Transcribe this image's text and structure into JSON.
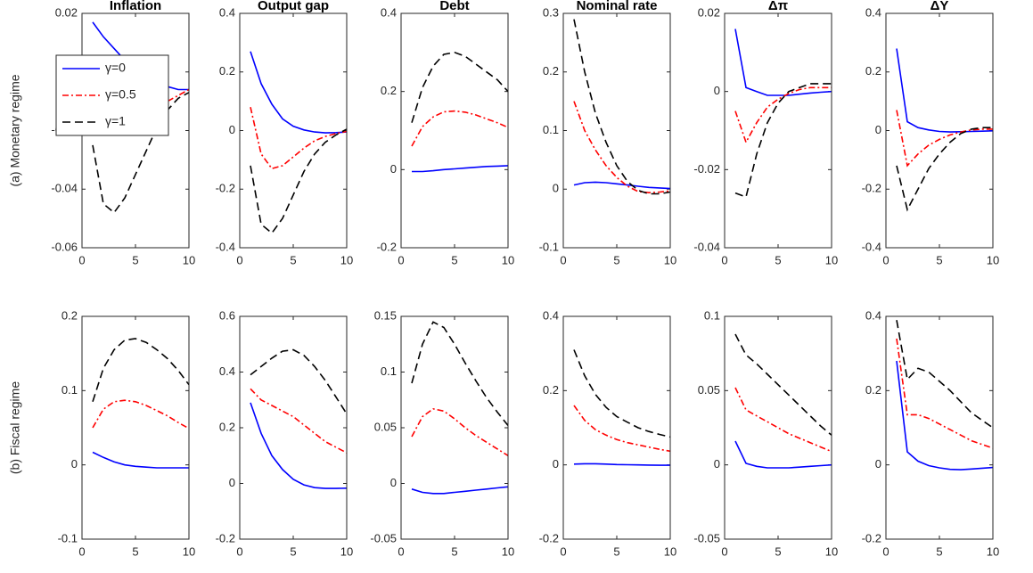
{
  "chart_data": [
    {
      "type": "line",
      "title": "Inflation",
      "ylabel": "(a) Monetary regime",
      "legend": "upper left",
      "x": [
        1,
        2,
        3,
        4,
        5,
        6,
        7,
        8,
        9,
        10
      ],
      "xlim": [
        0,
        10
      ],
      "xticks": [
        0,
        5,
        10
      ],
      "ylim": [
        -0.06,
        0.02
      ],
      "yticks": [
        -0.06,
        -0.04,
        -0.02,
        0,
        0.02
      ],
      "series": [
        {
          "name": "γ=0",
          "color": "#0000ff",
          "linestyle": "solid",
          "values": [
            0.017,
            0.012,
            0.008,
            0.004,
            0.001,
            -0.002,
            -0.004,
            -0.005,
            -0.006,
            -0.006
          ]
        },
        {
          "name": "γ=0.5",
          "color": "#ff0000",
          "linestyle": "dashdot",
          "values": [
            -0.003,
            -0.019,
            -0.02,
            -0.018,
            -0.016,
            -0.014,
            -0.012,
            -0.01,
            -0.008,
            -0.006
          ]
        },
        {
          "name": "γ=1",
          "color": "#000000",
          "linestyle": "dashed",
          "values": [
            -0.025,
            -0.045,
            -0.048,
            -0.043,
            -0.035,
            -0.027,
            -0.019,
            -0.013,
            -0.009,
            -0.007
          ]
        }
      ]
    },
    {
      "type": "line",
      "title": "Output gap",
      "x": [
        1,
        2,
        3,
        4,
        5,
        6,
        7,
        8,
        9,
        10
      ],
      "xlim": [
        0,
        10
      ],
      "xticks": [
        0,
        5,
        10
      ],
      "ylim": [
        -0.4,
        0.4
      ],
      "yticks": [
        -0.4,
        -0.2,
        0,
        0.2,
        0.4
      ],
      "series": [
        {
          "color": "#0000ff",
          "linestyle": "solid",
          "values": [
            0.27,
            0.16,
            0.09,
            0.04,
            0.015,
            0.002,
            -0.005,
            -0.008,
            -0.007,
            -0.005
          ]
        },
        {
          "color": "#ff0000",
          "linestyle": "dashdot",
          "values": [
            0.08,
            -0.08,
            -0.13,
            -0.12,
            -0.09,
            -0.06,
            -0.035,
            -0.02,
            -0.01,
            -0.003
          ]
        },
        {
          "color": "#000000",
          "linestyle": "dashed",
          "values": [
            -0.12,
            -0.32,
            -0.35,
            -0.3,
            -0.22,
            -0.14,
            -0.08,
            -0.04,
            -0.015,
            0.005
          ]
        }
      ]
    },
    {
      "type": "line",
      "title": "Debt",
      "x": [
        1,
        2,
        3,
        4,
        5,
        6,
        7,
        8,
        9,
        10
      ],
      "xlim": [
        0,
        10
      ],
      "xticks": [
        0,
        5,
        10
      ],
      "ylim": [
        -0.2,
        0.4
      ],
      "yticks": [
        -0.2,
        0,
        0.2,
        0.4
      ],
      "series": [
        {
          "color": "#0000ff",
          "linestyle": "solid",
          "values": [
            -0.005,
            -0.005,
            -0.003,
            0,
            0.002,
            0.004,
            0.006,
            0.008,
            0.009,
            0.01
          ]
        },
        {
          "color": "#ff0000",
          "linestyle": "dashdot",
          "values": [
            0.06,
            0.11,
            0.135,
            0.148,
            0.15,
            0.147,
            0.14,
            0.13,
            0.12,
            0.108
          ]
        },
        {
          "color": "#000000",
          "linestyle": "dashed",
          "values": [
            0.12,
            0.21,
            0.265,
            0.295,
            0.3,
            0.29,
            0.27,
            0.25,
            0.23,
            0.2
          ]
        }
      ]
    },
    {
      "type": "line",
      "title": "Nominal rate",
      "x": [
        1,
        2,
        3,
        4,
        5,
        6,
        7,
        8,
        9,
        10
      ],
      "xlim": [
        0,
        10
      ],
      "xticks": [
        0,
        5,
        10
      ],
      "ylim": [
        -0.1,
        0.3
      ],
      "yticks": [
        -0.1,
        0,
        0.1,
        0.2,
        0.3
      ],
      "series": [
        {
          "color": "#0000ff",
          "linestyle": "solid",
          "values": [
            0.007,
            0.011,
            0.012,
            0.011,
            0.009,
            0.007,
            0.005,
            0.003,
            0.002,
            0.001
          ]
        },
        {
          "color": "#ff0000",
          "linestyle": "dashdot",
          "values": [
            0.15,
            0.1,
            0.067,
            0.04,
            0.02,
            0.005,
            -0.004,
            -0.006,
            -0.005,
            -0.003
          ]
        },
        {
          "color": "#000000",
          "linestyle": "dashed",
          "values": [
            0.29,
            0.2,
            0.13,
            0.08,
            0.04,
            0.013,
            -0.002,
            -0.008,
            -0.008,
            -0.005
          ]
        }
      ]
    },
    {
      "type": "line",
      "title": "Δπ",
      "x": [
        1,
        2,
        3,
        4,
        5,
        6,
        7,
        8,
        9,
        10
      ],
      "xlim": [
        0,
        10
      ],
      "xticks": [
        0,
        5,
        10
      ],
      "ylim": [
        -0.04,
        0.02
      ],
      "yticks": [
        -0.04,
        -0.02,
        0,
        0.02
      ],
      "series": [
        {
          "color": "#0000ff",
          "linestyle": "solid",
          "values": [
            0.016,
            0.001,
            0,
            -0.001,
            -0.001,
            -0.001,
            -0.0007,
            -0.0004,
            -0.0002,
            0
          ]
        },
        {
          "color": "#ff0000",
          "linestyle": "dashdot",
          "values": [
            -0.005,
            -0.013,
            -0.008,
            -0.004,
            -0.002,
            -0.0005,
            0.0005,
            0.001,
            0.001,
            0.001
          ]
        },
        {
          "color": "#000000",
          "linestyle": "dashed",
          "values": [
            -0.026,
            -0.027,
            -0.016,
            -0.008,
            -0.003,
            0,
            0.001,
            0.002,
            0.002,
            0.002
          ]
        }
      ]
    },
    {
      "type": "line",
      "title": "ΔY",
      "x": [
        1,
        2,
        3,
        4,
        5,
        6,
        7,
        8,
        9,
        10
      ],
      "xlim": [
        0,
        10
      ],
      "xticks": [
        0,
        5,
        10
      ],
      "ylim": [
        -0.4,
        0.4
      ],
      "yticks": [
        -0.4,
        -0.2,
        0,
        0.2,
        0.4
      ],
      "series": [
        {
          "color": "#0000ff",
          "linestyle": "solid",
          "values": [
            0.28,
            0.03,
            0.01,
            0.002,
            -0.003,
            -0.005,
            -0.004,
            -0.003,
            -0.002,
            -0.001
          ]
        },
        {
          "color": "#ff0000",
          "linestyle": "dashdot",
          "values": [
            0.07,
            -0.12,
            -0.08,
            -0.05,
            -0.03,
            -0.015,
            -0.005,
            0.002,
            0.005,
            0.005
          ]
        },
        {
          "color": "#000000",
          "linestyle": "dashed",
          "values": [
            -0.12,
            -0.27,
            -0.2,
            -0.13,
            -0.08,
            -0.04,
            -0.01,
            0.005,
            0.01,
            0.01
          ]
        }
      ]
    },
    {
      "type": "line",
      "ylabel": "(b) Fiscal regime",
      "x": [
        1,
        2,
        3,
        4,
        5,
        6,
        7,
        8,
        9,
        10
      ],
      "xlim": [
        0,
        10
      ],
      "xticks": [
        0,
        5,
        10
      ],
      "ylim": [
        -0.1,
        0.2
      ],
      "yticks": [
        -0.1,
        0,
        0.1,
        0.2
      ],
      "series": [
        {
          "color": "#0000ff",
          "linestyle": "solid",
          "values": [
            0.017,
            0.01,
            0.004,
            0,
            -0.002,
            -0.003,
            -0.004,
            -0.004,
            -0.004,
            -0.004
          ]
        },
        {
          "color": "#ff0000",
          "linestyle": "dashdot",
          "values": [
            0.05,
            0.075,
            0.085,
            0.087,
            0.085,
            0.08,
            0.073,
            0.066,
            0.057,
            0.049
          ]
        },
        {
          "color": "#000000",
          "linestyle": "dashed",
          "values": [
            0.085,
            0.13,
            0.155,
            0.168,
            0.17,
            0.165,
            0.155,
            0.143,
            0.127,
            0.108
          ]
        }
      ]
    },
    {
      "type": "line",
      "x": [
        1,
        2,
        3,
        4,
        5,
        6,
        7,
        8,
        9,
        10
      ],
      "xlim": [
        0,
        10
      ],
      "xticks": [
        0,
        5,
        10
      ],
      "ylim": [
        -0.2,
        0.6
      ],
      "yticks": [
        -0.2,
        0,
        0.2,
        0.4,
        0.6
      ],
      "series": [
        {
          "color": "#0000ff",
          "linestyle": "solid",
          "values": [
            0.29,
            0.18,
            0.1,
            0.05,
            0.015,
            -0.005,
            -0.015,
            -0.018,
            -0.018,
            -0.017
          ]
        },
        {
          "color": "#ff0000",
          "linestyle": "dashdot",
          "values": [
            0.34,
            0.3,
            0.28,
            0.26,
            0.24,
            0.21,
            0.18,
            0.15,
            0.13,
            0.11
          ]
        },
        {
          "color": "#000000",
          "linestyle": "dashed",
          "values": [
            0.39,
            0.42,
            0.45,
            0.475,
            0.48,
            0.46,
            0.42,
            0.37,
            0.31,
            0.25
          ]
        }
      ]
    },
    {
      "type": "line",
      "x": [
        1,
        2,
        3,
        4,
        5,
        6,
        7,
        8,
        9,
        10
      ],
      "xlim": [
        0,
        10
      ],
      "xticks": [
        0,
        5,
        10
      ],
      "ylim": [
        -0.05,
        0.15
      ],
      "yticks": [
        -0.05,
        0,
        0.05,
        0.1,
        0.15
      ],
      "series": [
        {
          "color": "#0000ff",
          "linestyle": "solid",
          "values": [
            -0.005,
            -0.008,
            -0.009,
            -0.009,
            -0.008,
            -0.007,
            -0.006,
            -0.005,
            -0.004,
            -0.003
          ]
        },
        {
          "color": "#ff0000",
          "linestyle": "dashdot",
          "values": [
            0.042,
            0.06,
            0.067,
            0.065,
            0.058,
            0.05,
            0.043,
            0.037,
            0.031,
            0.025
          ]
        },
        {
          "color": "#000000",
          "linestyle": "dashed",
          "values": [
            0.09,
            0.125,
            0.145,
            0.14,
            0.125,
            0.108,
            0.092,
            0.077,
            0.064,
            0.052
          ]
        }
      ]
    },
    {
      "type": "line",
      "x": [
        1,
        2,
        3,
        4,
        5,
        6,
        7,
        8,
        9,
        10
      ],
      "xlim": [
        0,
        10
      ],
      "xticks": [
        0,
        5,
        10
      ],
      "ylim": [
        -0.2,
        0.4
      ],
      "yticks": [
        -0.2,
        0,
        0.2,
        0.4
      ],
      "series": [
        {
          "color": "#0000ff",
          "linestyle": "solid",
          "values": [
            0.002,
            0.003,
            0.003,
            0.002,
            0.001,
            0.0005,
            0,
            -0.0005,
            -0.001,
            -0.001
          ]
        },
        {
          "color": "#ff0000",
          "linestyle": "dashdot",
          "values": [
            0.16,
            0.12,
            0.095,
            0.08,
            0.068,
            0.06,
            0.054,
            0.048,
            0.042,
            0.037
          ]
        },
        {
          "color": "#000000",
          "linestyle": "dashed",
          "values": [
            0.31,
            0.24,
            0.19,
            0.155,
            0.13,
            0.115,
            0.1,
            0.09,
            0.082,
            0.075
          ]
        }
      ]
    },
    {
      "type": "line",
      "x": [
        1,
        2,
        3,
        4,
        5,
        6,
        7,
        8,
        9,
        10
      ],
      "xlim": [
        0,
        10
      ],
      "xticks": [
        0,
        5,
        10
      ],
      "ylim": [
        -0.05,
        0.1
      ],
      "yticks": [
        -0.05,
        0,
        0.05,
        0.1
      ],
      "series": [
        {
          "color": "#0000ff",
          "linestyle": "solid",
          "values": [
            0.016,
            0.001,
            -0.001,
            -0.002,
            -0.002,
            -0.002,
            -0.0015,
            -0.001,
            -0.0005,
            0
          ]
        },
        {
          "color": "#ff0000",
          "linestyle": "dashdot",
          "values": [
            0.052,
            0.037,
            0.033,
            0.029,
            0.025,
            0.021,
            0.018,
            0.015,
            0.012,
            0.009
          ]
        },
        {
          "color": "#000000",
          "linestyle": "dashed",
          "values": [
            0.088,
            0.074,
            0.068,
            0.061,
            0.054,
            0.047,
            0.04,
            0.033,
            0.026,
            0.02
          ]
        }
      ]
    },
    {
      "type": "line",
      "x": [
        1,
        2,
        3,
        4,
        5,
        6,
        7,
        8,
        9,
        10
      ],
      "xlim": [
        0,
        10
      ],
      "xticks": [
        0,
        5,
        10
      ],
      "ylim": [
        -0.2,
        0.4
      ],
      "yticks": [
        -0.2,
        0,
        0.2,
        0.4
      ],
      "series": [
        {
          "color": "#0000ff",
          "linestyle": "solid",
          "values": [
            0.28,
            0.035,
            0.01,
            -0.002,
            -0.008,
            -0.012,
            -0.013,
            -0.011,
            -0.009,
            -0.007
          ]
        },
        {
          "color": "#ff0000",
          "linestyle": "dashdot",
          "values": [
            0.34,
            0.135,
            0.135,
            0.125,
            0.11,
            0.095,
            0.08,
            0.065,
            0.055,
            0.045
          ]
        },
        {
          "color": "#000000",
          "linestyle": "dashed",
          "values": [
            0.39,
            0.23,
            0.26,
            0.25,
            0.225,
            0.2,
            0.17,
            0.14,
            0.12,
            0.1
          ]
        }
      ]
    }
  ]
}
